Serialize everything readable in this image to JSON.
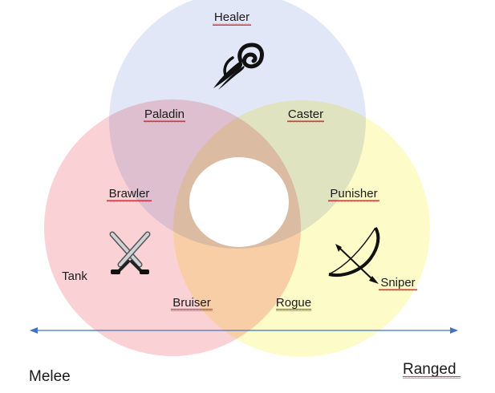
{
  "diagram": {
    "labels": {
      "healer": "Healer",
      "paladin": "Paladin",
      "caster": "Caster",
      "brawler": "Brawler",
      "punisher": "Punisher",
      "tank": "Tank",
      "bruiser": "Bruiser",
      "rogue": "Rogue",
      "sniper": "Sniper"
    },
    "axis": {
      "left": "Melee",
      "right": "Ranged"
    },
    "colors": {
      "healer_circle": "#c8d4ee",
      "melee_circle": "#f8bfc4",
      "ranged_circle": "#fdfab4",
      "center_hole": "#ffffff",
      "axis_arrow": "#4472c4",
      "spellcheck_underline": "#d21f1f"
    },
    "icons": [
      "staff-swirl-icon",
      "crossed-swords-icon",
      "bow-arrow-icon"
    ]
  }
}
